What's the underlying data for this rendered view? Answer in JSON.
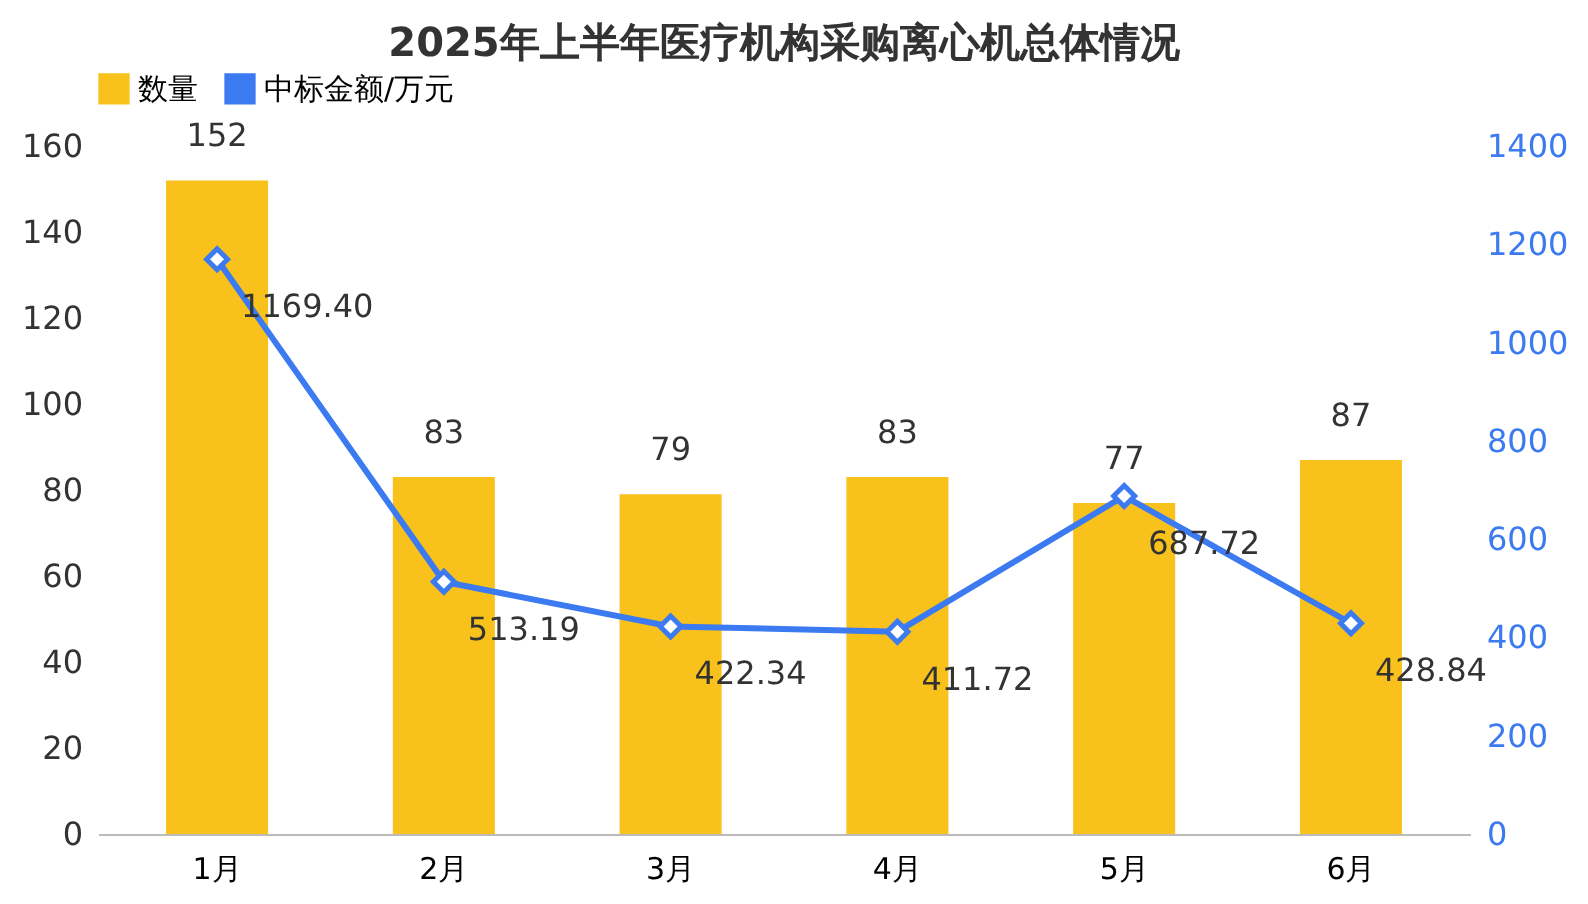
{
  "chart_data": {
    "type": "bar",
    "title": "2025年上半年医疗机构采购离心机总体情况",
    "categories": [
      "1月",
      "2月",
      "3月",
      "4月",
      "5月",
      "6月"
    ],
    "series": [
      {
        "name": "数量",
        "color": "#f8c11c",
        "values": [
          152,
          83,
          79,
          83,
          77,
          87
        ],
        "value_labels": [
          "152",
          "83",
          "79",
          "83",
          "77",
          "87"
        ]
      },
      {
        "name": "中标金额/万元",
        "type": "line",
        "axis": "y2",
        "marker": "diamond",
        "color": "#3b7af0",
        "values": [
          1169.4,
          513.19,
          422.34,
          411.72,
          687.72,
          428.84
        ],
        "value_labels": [
          "1169.40",
          "513.19",
          "422.34",
          "411.72",
          "687.72",
          "428.84"
        ]
      }
    ],
    "ylim": [
      0,
      160
    ],
    "yticks": [
      0,
      20,
      40,
      60,
      80,
      100,
      120,
      140,
      160
    ],
    "y2lim": [
      0,
      1400
    ],
    "y2ticks": [
      0,
      200,
      400,
      600,
      800,
      1000,
      1200,
      1400
    ],
    "legend": "top",
    "grid": false
  }
}
